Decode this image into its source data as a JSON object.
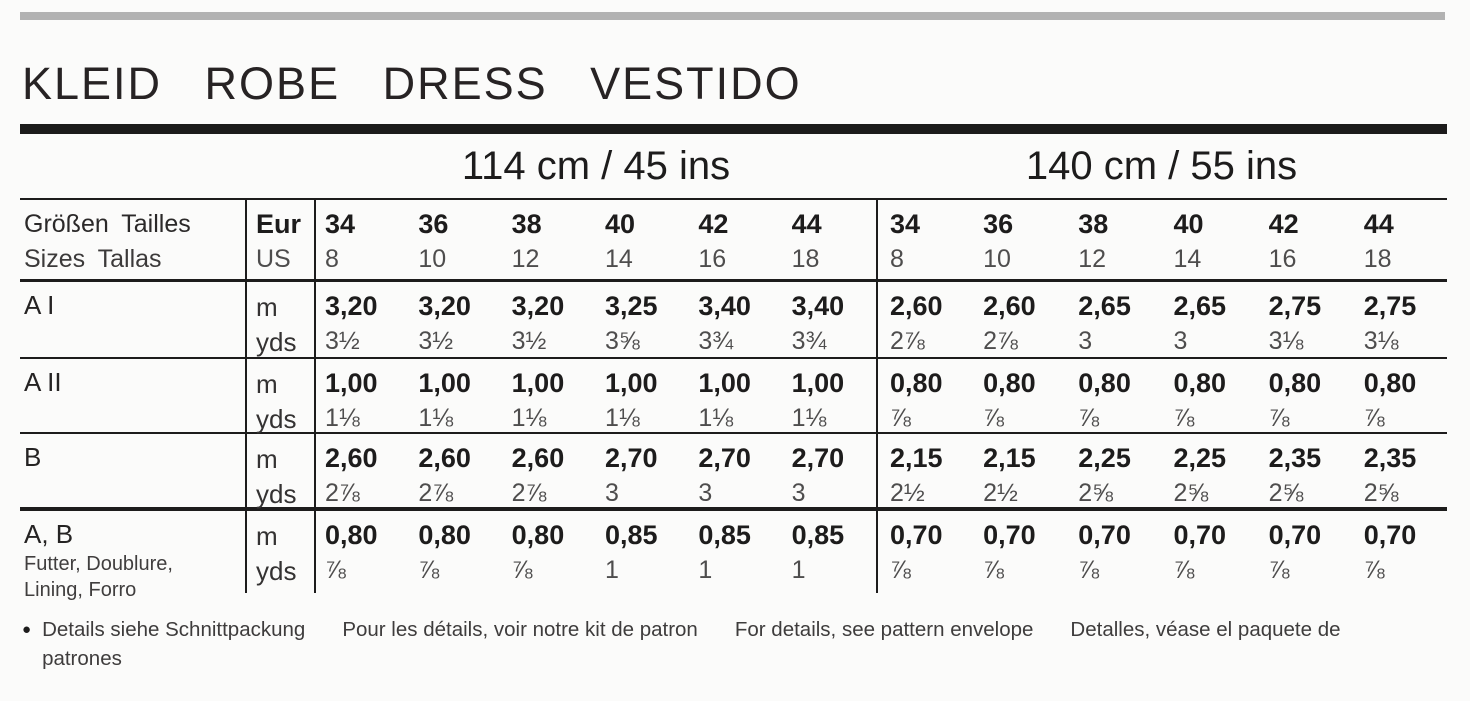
{
  "title": "KLEID ROBE DRESS VESTIDO",
  "width_headers": [
    "114 cm / 45 ins",
    "140 cm / 55 ins"
  ],
  "units": {
    "m": "m",
    "yds": "yds"
  },
  "size_header": {
    "label_top": "Größen Tailles",
    "label_bottom": "Sizes Tallas",
    "unit_top": "Eur",
    "unit_bottom": "US",
    "eur": [
      "34",
      "36",
      "38",
      "40",
      "42",
      "44"
    ],
    "us": [
      "8",
      "10",
      "12",
      "14",
      "16",
      "18"
    ]
  },
  "rows": [
    {
      "label": "A I",
      "sublabel1": "",
      "sublabel2": "",
      "m_114": [
        "3,20",
        "3,20",
        "3,20",
        "3,25",
        "3,40",
        "3,40"
      ],
      "yds_114": [
        "3½",
        "3½",
        "3½",
        "3⅝",
        "3¾",
        "3¾"
      ],
      "m_140": [
        "2,60",
        "2,60",
        "2,65",
        "2,65",
        "2,75",
        "2,75"
      ],
      "yds_140": [
        "2⅞",
        "2⅞",
        "3",
        "3",
        "3⅛",
        "3⅛"
      ]
    },
    {
      "label": "A II",
      "sublabel1": "",
      "sublabel2": "",
      "m_114": [
        "1,00",
        "1,00",
        "1,00",
        "1,00",
        "1,00",
        "1,00"
      ],
      "yds_114": [
        "1⅛",
        "1⅛",
        "1⅛",
        "1⅛",
        "1⅛",
        "1⅛"
      ],
      "m_140": [
        "0,80",
        "0,80",
        "0,80",
        "0,80",
        "0,80",
        "0,80"
      ],
      "yds_140": [
        "⅞",
        "⅞",
        "⅞",
        "⅞",
        "⅞",
        "⅞"
      ]
    },
    {
      "label": "B",
      "sublabel1": "",
      "sublabel2": "",
      "m_114": [
        "2,60",
        "2,60",
        "2,60",
        "2,70",
        "2,70",
        "2,70"
      ],
      "yds_114": [
        "2⅞",
        "2⅞",
        "2⅞",
        "3",
        "3",
        "3"
      ],
      "m_140": [
        "2,15",
        "2,15",
        "2,25",
        "2,25",
        "2,35",
        "2,35"
      ],
      "yds_140": [
        "2½",
        "2½",
        "2⅝",
        "2⅝",
        "2⅝",
        "2⅝"
      ]
    },
    {
      "label": "A, B",
      "sublabel1": "Futter, Doublure,",
      "sublabel2": "Lining, Forro",
      "m_114": [
        "0,80",
        "0,80",
        "0,80",
        "0,85",
        "0,85",
        "0,85"
      ],
      "yds_114": [
        "⅞",
        "⅞",
        "⅞",
        "1",
        "1",
        "1"
      ],
      "m_140": [
        "0,70",
        "0,70",
        "0,70",
        "0,70",
        "0,70",
        "0,70"
      ],
      "yds_140": [
        "⅞",
        "⅞",
        "⅞",
        "⅞",
        "⅞",
        "⅞"
      ]
    }
  ],
  "footer": {
    "bullet": "●",
    "phrases": [
      "Details siehe Schnittpackung",
      "Pour les détails, voir notre kit de patron",
      "For details, see pattern envelope",
      "Detalles, véase el paquete de"
    ],
    "wrap_line": "patrones"
  }
}
